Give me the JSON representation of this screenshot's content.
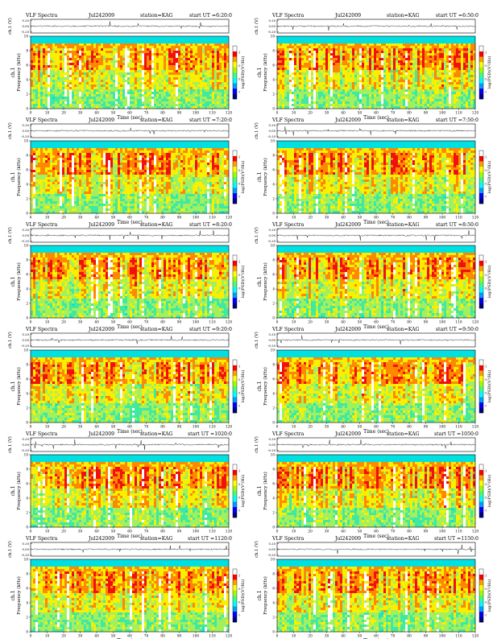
{
  "colors": {
    "cbar": [
      "#000080",
      "#0000ff",
      "#00a0ff",
      "#00ffff",
      "#40ff80",
      "#a0ff00",
      "#ffff00",
      "#ffa000",
      "#ff0000",
      "#ffffff"
    ],
    "spectrogram": [
      "#00e0e0",
      "#40e8a0",
      "#a0f060",
      "#f8f000",
      "#ff8800",
      "#f01010"
    ]
  },
  "labels": {
    "yl_ch": "ch.1 (V)",
    "yl_ch1": "ch.1",
    "yl_freq": "Frequency (kHz)",
    "xlabel": "Time (sec)",
    "cbar_label": "log(PSD)(V²/Hz)"
  },
  "panels": [
    {
      "left": "VLF Spectra",
      "date": "Jul242009",
      "station": "station=KAG",
      "ut": "start UT =6:20:0"
    },
    {
      "left": "VLF Spectra",
      "date": "Jul242009",
      "station": "station=KAG",
      "ut": "start UT =6:50:0"
    },
    {
      "left": "VLF Spectra",
      "date": "Jul242009",
      "station": "station=KAG",
      "ut": "start UT =7:20:0"
    },
    {
      "left": "VLF Spectra",
      "date": "Jul242009",
      "station": "station=KAG",
      "ut": "start UT =7:50:0"
    },
    {
      "left": "VLF Spectra",
      "date": "Jul242009",
      "station": "station=KAG",
      "ut": "start UT =8:20:0"
    },
    {
      "left": "VLF Spectra",
      "date": "Jul242009",
      "station": "station=KAG",
      "ut": "start UT =8:50:0"
    },
    {
      "left": "VLF Spectra",
      "date": "Jul242009",
      "station": "station=KAG",
      "ut": "start UT =9:20:0"
    },
    {
      "left": "VLF Spectra",
      "date": "Jul242009",
      "station": "station=KAG",
      "ut": "start UT =9:50:0"
    },
    {
      "left": "VLF Spectra",
      "date": "Jul242009",
      "station": "station=KAG",
      "ut": "start UT =1020:0"
    },
    {
      "left": "VLF Spectra",
      "date": "Jul242009",
      "station": "station=KAG",
      "ut": "start UT =1050:0"
    },
    {
      "left": "VLF Spectra",
      "date": "Jul242009",
      "station": "station=KAG",
      "ut": "start UT =1120:0"
    },
    {
      "left": "VLF Spectra",
      "date": "Jul242009",
      "station": "station=KAG",
      "ut": "start UT =1150:0"
    }
  ],
  "chart_data": {
    "type": "heatmap",
    "panel_count": 12,
    "layout": "6 rows x 2 columns",
    "xlabel": "Time (sec)",
    "xlim": [
      0,
      120
    ],
    "xticks": [
      0,
      10,
      20,
      30,
      40,
      50,
      60,
      70,
      80,
      90,
      100,
      110,
      120
    ],
    "waveform_ylabel": "ch.1 (V)",
    "waveform_yticks": [
      "0.20",
      "0.00",
      "-0.20"
    ],
    "waveform_ylim": [
      -0.2,
      0.2
    ],
    "spectrogram_ylabel": "ch.1 Frequency (kHz)",
    "spectrogram_ylim": [
      0,
      10
    ],
    "spectrogram_yticks": [
      0,
      2,
      4,
      6,
      8,
      10
    ],
    "colorbar_label": "log(PSD)(V²/Hz)",
    "colorbar_ticks": [
      "-1",
      "-3",
      "-5",
      "-7"
    ]
  }
}
